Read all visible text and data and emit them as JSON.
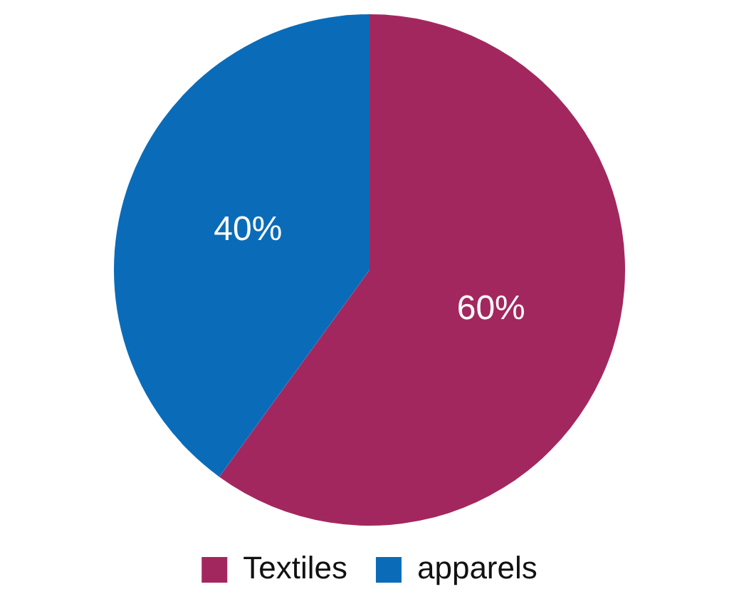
{
  "chart_data": {
    "type": "pie",
    "categories": [
      "Textiles",
      "apparels"
    ],
    "values": [
      60,
      40
    ],
    "colors": [
      "#a3275f",
      "#0a6cb8"
    ],
    "value_labels": [
      "60%",
      "40%"
    ],
    "legend": "bottom"
  }
}
